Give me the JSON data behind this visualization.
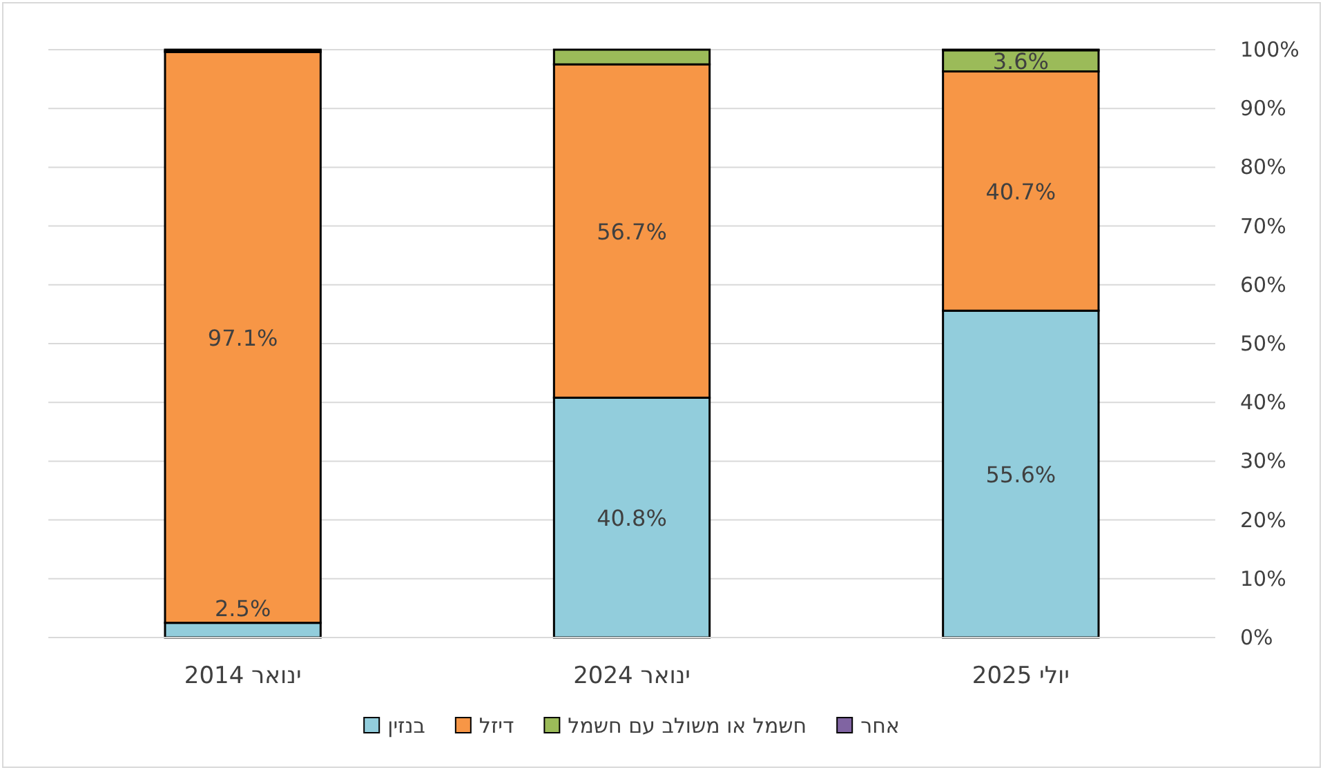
{
  "chart_data": {
    "type": "bar",
    "stacked": true,
    "categories": [
      "ינואר 2014",
      "ינואר 2024",
      "יולי 2025"
    ],
    "series": [
      {
        "name": "בנזין",
        "color": "#92cddc",
        "values": [
          2.5,
          40.8,
          55.6
        ],
        "value_labels": [
          "2.5%",
          "40.8%",
          "55.6%"
        ]
      },
      {
        "name": "דיזל",
        "color": "#f79646",
        "values": [
          97.1,
          56.7,
          40.7
        ],
        "value_labels": [
          "97.1%",
          "56.7%",
          "40.7%"
        ]
      },
      {
        "name": "חשמל או משולב עם חשמל",
        "color": "#9bbb59",
        "values": [
          0.2,
          2.5,
          3.6
        ],
        "value_labels": [
          null,
          null,
          "3.6%"
        ]
      },
      {
        "name": "אחר",
        "color": "#8064a2",
        "values": [
          0.2,
          0,
          0.1
        ],
        "value_labels": [
          null,
          null,
          null
        ]
      }
    ],
    "ylim": [
      0,
      100
    ],
    "yticks": [
      {
        "value": 0,
        "label": "0%"
      },
      {
        "value": 10,
        "label": "10%"
      },
      {
        "value": 20,
        "label": "20%"
      },
      {
        "value": 30,
        "label": "30%"
      },
      {
        "value": 40,
        "label": "40%"
      },
      {
        "value": 50,
        "label": "50%"
      },
      {
        "value": 60,
        "label": "60%"
      },
      {
        "value": 70,
        "label": "70%"
      },
      {
        "value": 80,
        "label": "80%"
      },
      {
        "value": 90,
        "label": "90%"
      },
      {
        "value": 100,
        "label": "100%"
      }
    ],
    "grid": "y",
    "legend": "bottom"
  }
}
